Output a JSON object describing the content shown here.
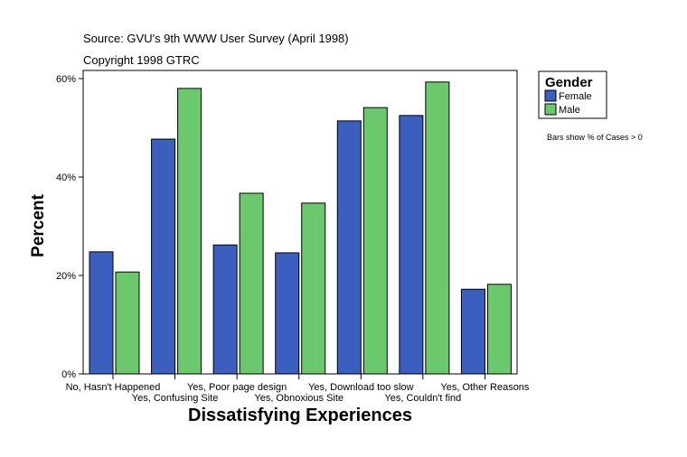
{
  "chart_data": {
    "type": "bar",
    "title": "",
    "source_note": "Source: GVU's 9th WWW User Survey (April 1998)",
    "copyright_note": "Copyright 1998 GTRC",
    "xlabel": "Dissatisfying Experiences",
    "ylabel": "Percent",
    "ylim": [
      0,
      60
    ],
    "yticks": [
      0,
      20,
      40,
      60
    ],
    "ytick_labels": [
      "0%",
      "20%",
      "40%",
      "60%"
    ],
    "categories": [
      "No, Hasn't Happened",
      "Yes, Confusing Site",
      "Yes, Poor page design",
      "Yes, Obnoxious Site",
      "Yes, Download too slow",
      "Yes, Couldn't find",
      "Yes, Other Reasons"
    ],
    "legend_title": "Gender",
    "legend_position": "top-right",
    "footnote": "Bars show % of Cases > 0",
    "grid": false,
    "series": [
      {
        "name": "Female",
        "color": "#3a5fbf",
        "values": [
          24.8,
          47.7,
          26.2,
          24.6,
          51.4,
          52.5,
          17.2
        ]
      },
      {
        "name": "Male",
        "color": "#6cc86c",
        "values": [
          20.7,
          58.0,
          36.7,
          34.7,
          54.1,
          59.3,
          18.2
        ]
      }
    ]
  }
}
